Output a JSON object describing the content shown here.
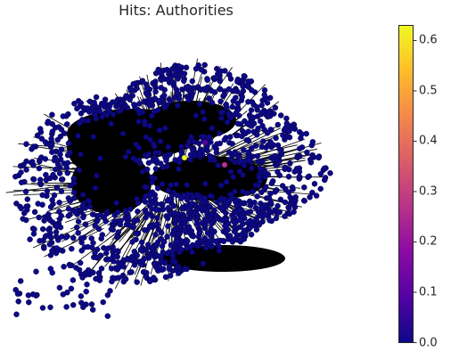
{
  "title": "Hits: Authorities",
  "colorbar": {
    "colormap": "plasma",
    "min": 0.0,
    "max": 0.63,
    "ticks": [
      {
        "value": 0.0,
        "label": "0.0"
      },
      {
        "value": 0.1,
        "label": "0.1"
      },
      {
        "value": 0.2,
        "label": "0.2"
      },
      {
        "value": 0.3,
        "label": "0.3"
      },
      {
        "value": 0.4,
        "label": "0.4"
      },
      {
        "value": 0.5,
        "label": "0.5"
      },
      {
        "value": 0.6,
        "label": "0.6"
      }
    ],
    "stops": [
      "#0d0887",
      "#5302a3",
      "#8b0aa5",
      "#b83289",
      "#db5c68",
      "#f48849",
      "#febd2a",
      "#f0f921"
    ]
  },
  "graph": {
    "node_color_low": "#0d0887",
    "node_edge_color": "#050440",
    "edge_color": "#000000",
    "highlighted_nodes": [
      {
        "score": 0.62,
        "color": "#f0f921"
      },
      {
        "score": 0.25,
        "color": "#b83289"
      },
      {
        "score": 0.08,
        "color": "#5302a3"
      }
    ]
  }
}
